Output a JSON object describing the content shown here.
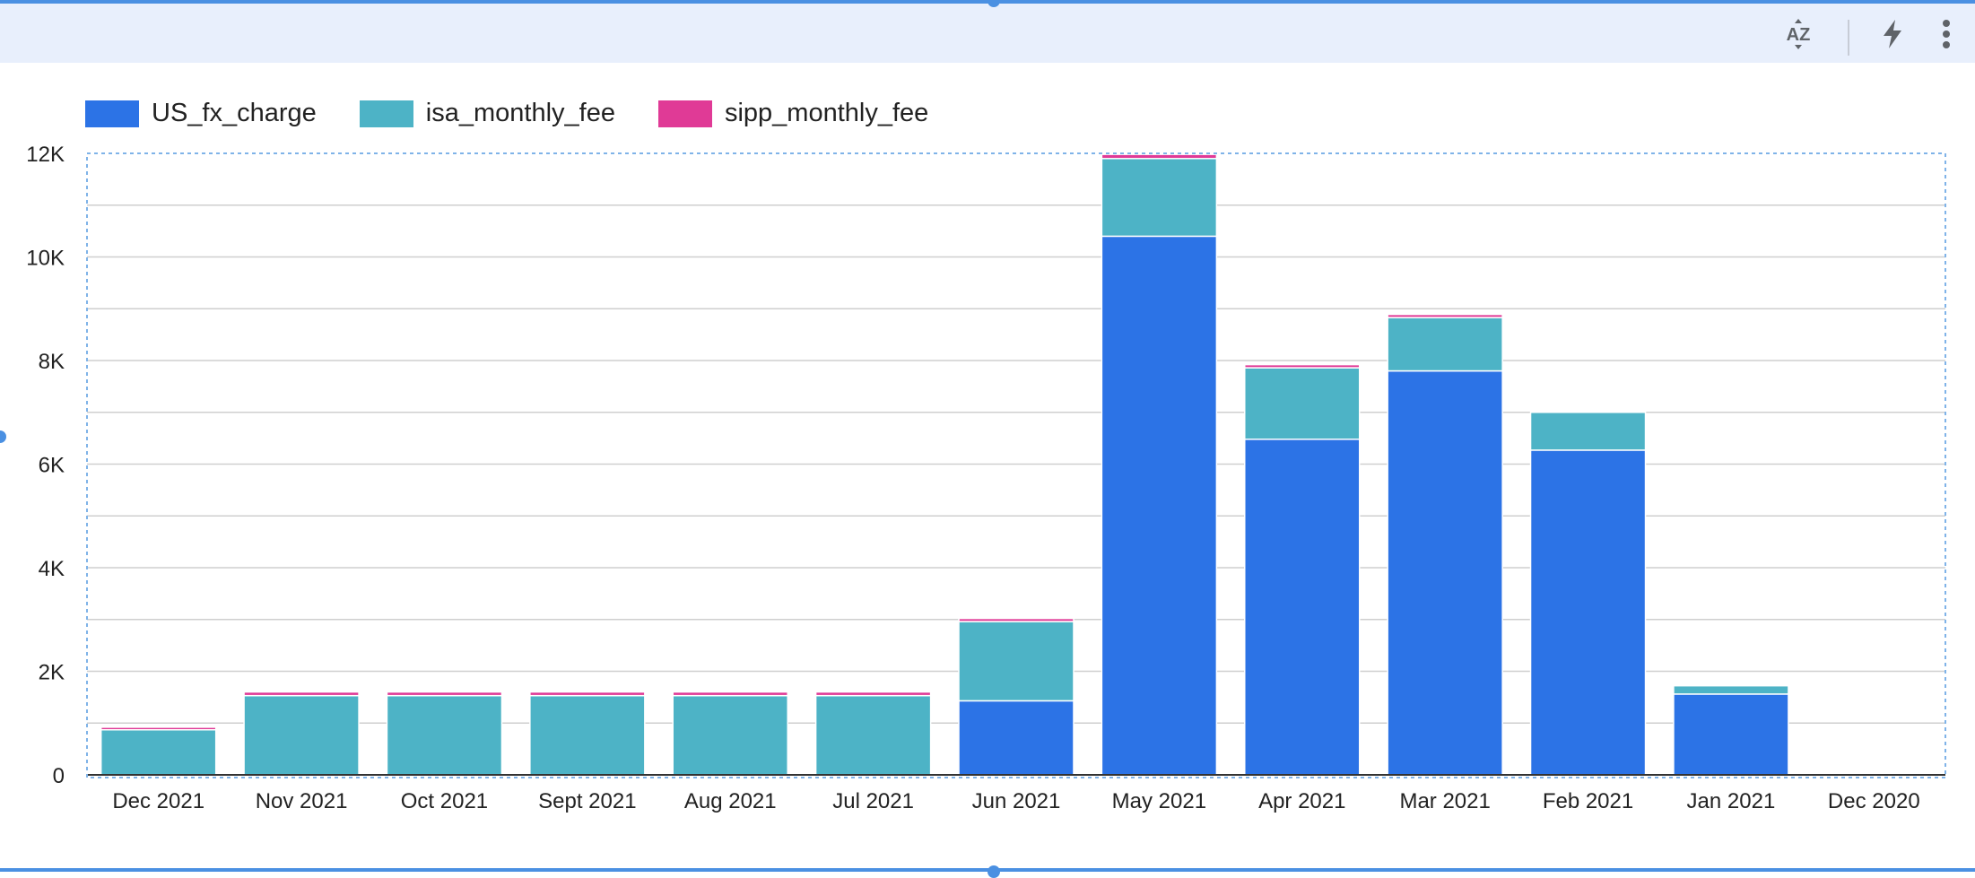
{
  "toolbar": {
    "sort_icon": "az-sort-icon",
    "sort_label": "AZ",
    "insights_icon": "lightning-icon",
    "more_icon": "vertical-dots-icon"
  },
  "colors": {
    "US_fx_charge": "#2c73e6",
    "isa_monthly_fee": "#4db3c6",
    "sipp_monthly_fee": "#e03a96",
    "accent": "#4a90e2"
  },
  "chart_data": {
    "type": "bar",
    "stacked": true,
    "categories": [
      "Dec 2021",
      "Nov 2021",
      "Oct 2021",
      "Sept 2021",
      "Aug 2021",
      "Jul 2021",
      "Jun 2021",
      "May 2021",
      "Apr 2021",
      "Mar 2021",
      "Feb 2021",
      "Jan 2021",
      "Dec 2020"
    ],
    "series": [
      {
        "name": "US_fx_charge",
        "values": [
          0,
          0,
          0,
          0,
          0,
          0,
          1430,
          10400,
          6480,
          7800,
          6270,
          1560,
          0
        ]
      },
      {
        "name": "isa_monthly_fee",
        "values": [
          870,
          1530,
          1530,
          1530,
          1530,
          1530,
          1530,
          1500,
          1380,
          1030,
          730,
          160,
          0
        ]
      },
      {
        "name": "sipp_monthly_fee",
        "values": [
          50,
          70,
          70,
          70,
          70,
          70,
          60,
          80,
          60,
          60,
          0,
          0,
          0
        ]
      }
    ],
    "yticks": [
      "0",
      "2K",
      "4K",
      "6K",
      "8K",
      "10K",
      "12K"
    ],
    "ylim": [
      0,
      12000
    ],
    "legend": "top-left",
    "grid": true
  }
}
